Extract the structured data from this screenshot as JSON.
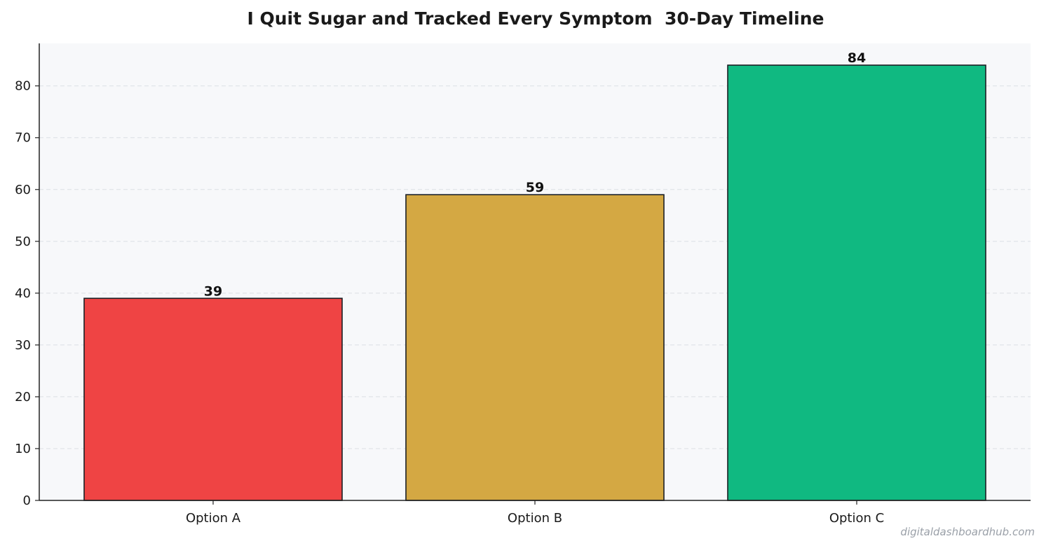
{
  "chart_data": {
    "type": "bar",
    "title": "I Quit Sugar and Tracked Every Symptom  30-Day Timeline",
    "xlabel": "",
    "ylabel": "",
    "categories": [
      "Option A",
      "Option B",
      "Option C"
    ],
    "values": [
      39,
      59,
      84
    ],
    "data_labels": [
      "39",
      "59",
      "84"
    ],
    "colors": [
      "#ef4444",
      "#d4a843",
      "#10b981"
    ],
    "ylim": [
      0,
      88.2
    ],
    "yticks": [
      0,
      10,
      20,
      30,
      40,
      50,
      60,
      70,
      80
    ],
    "ytick_labels": [
      "0",
      "10",
      "20",
      "30",
      "40",
      "50",
      "60",
      "70",
      "80"
    ],
    "grid": "horizontal dashed",
    "legend": "none",
    "plot_background": "#f7f8fa"
  },
  "watermark": "digitaldashboardhub.com"
}
